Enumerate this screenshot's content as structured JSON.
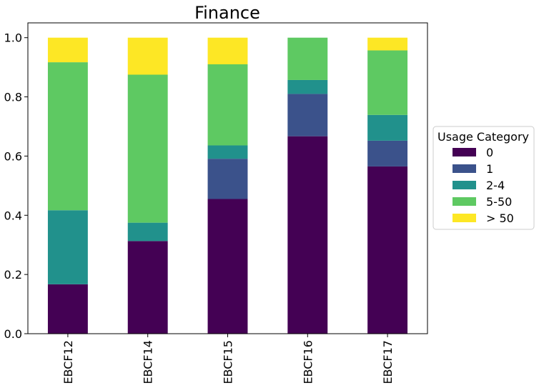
{
  "chart_data": {
    "type": "bar",
    "stacked": true,
    "title": "Finance",
    "categories": [
      "EBCF12",
      "EBCF14",
      "EBCF15",
      "EBCF16",
      "EBCF17"
    ],
    "series": [
      {
        "name": "0",
        "color": "#440154",
        "values": [
          0.167,
          0.313,
          0.455,
          0.667,
          0.565
        ]
      },
      {
        "name": "1",
        "color": "#3b528b",
        "values": [
          0.0,
          0.0,
          0.136,
          0.143,
          0.087
        ]
      },
      {
        "name": "2-4",
        "color": "#21918c",
        "values": [
          0.25,
          0.062,
          0.045,
          0.047,
          0.087
        ]
      },
      {
        "name": "5-50",
        "color": "#5ec962",
        "values": [
          0.5,
          0.5,
          0.274,
          0.143,
          0.218
        ]
      },
      {
        "name": "> 50",
        "color": "#fde725",
        "values": [
          0.083,
          0.125,
          0.09,
          0.0,
          0.043
        ]
      }
    ],
    "ylim": [
      0,
      1.05
    ],
    "yticks": [
      "0.0",
      "0.2",
      "0.4",
      "0.6",
      "0.8",
      "1.0"
    ],
    "legend": {
      "title": "Usage Category",
      "position": "right"
    },
    "grid": false
  }
}
